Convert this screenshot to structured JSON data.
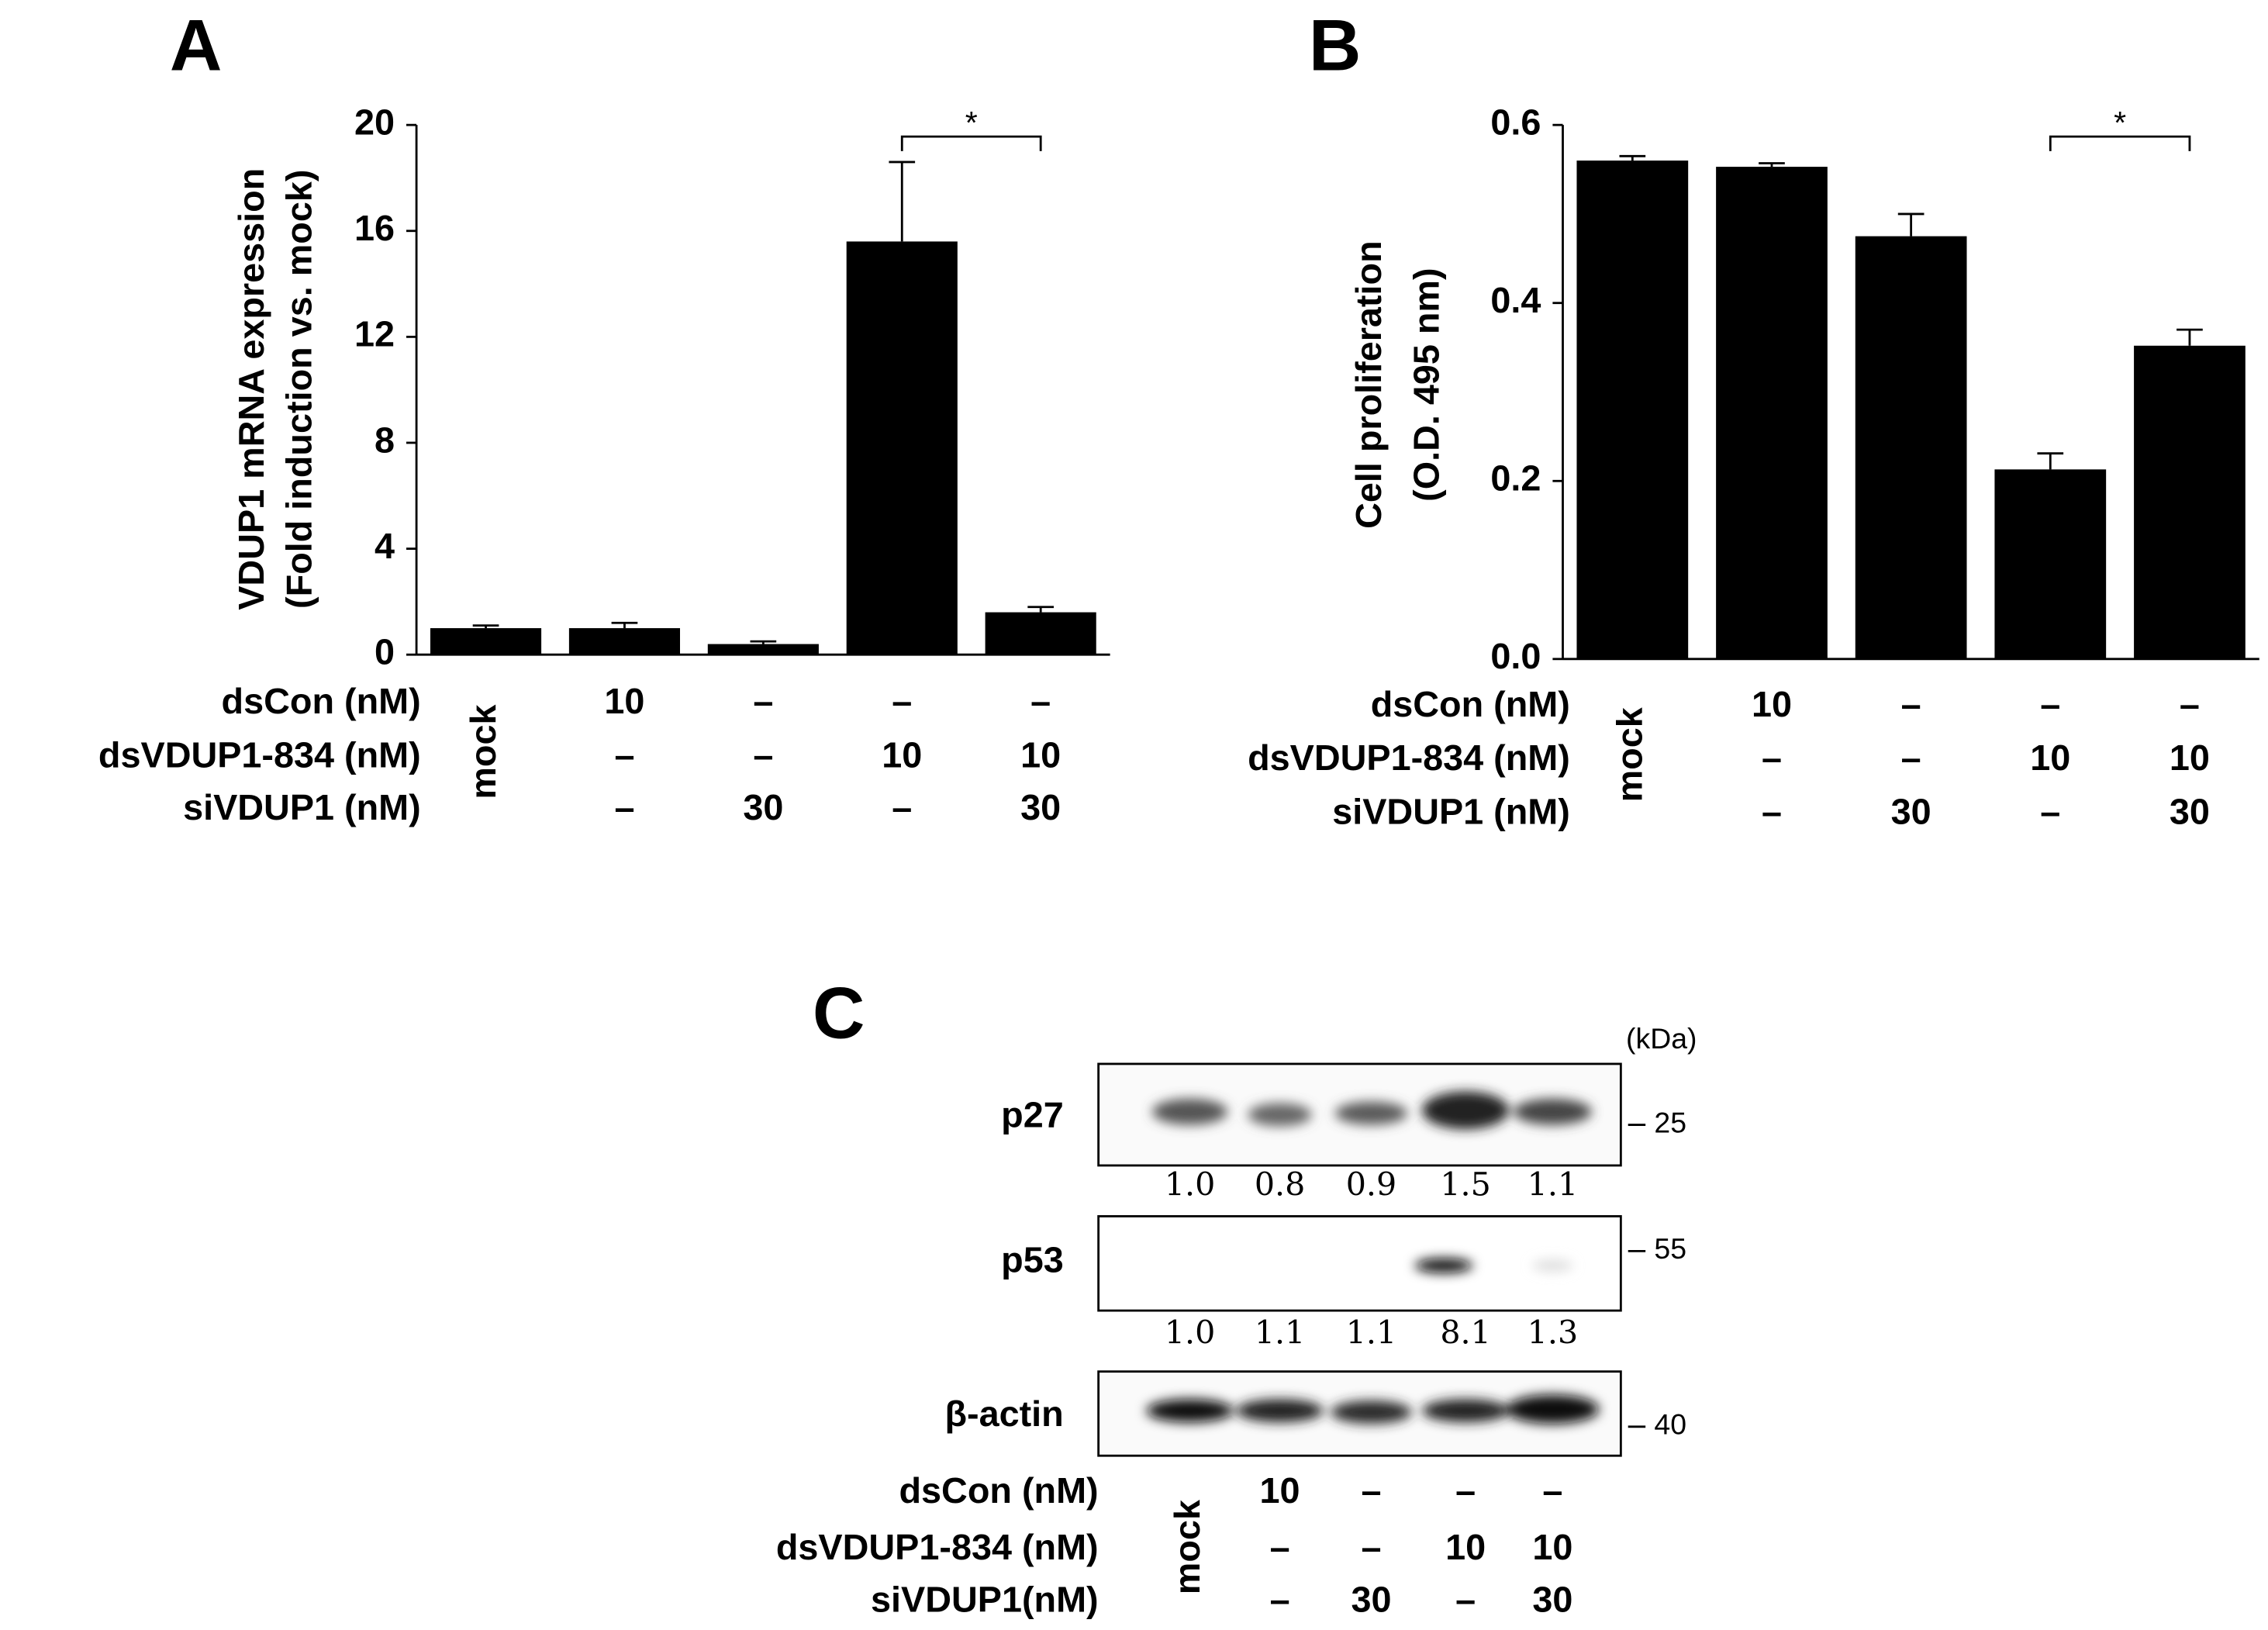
{
  "chart_data": [
    {
      "type": "bar",
      "panel": "A",
      "ylabel": [
        "VDUP1 mRNA expression",
        "(Fold induction vs. mock)"
      ],
      "categories": [
        "mock",
        null,
        null,
        null,
        null
      ],
      "values": [
        1.0,
        1.0,
        0.4,
        15.6,
        1.6
      ],
      "errors": [
        0.1,
        0.2,
        0.1,
        3.0,
        0.2
      ],
      "color": "#000000",
      "ylim": [
        0,
        20
      ],
      "yticks": [
        0,
        4,
        8,
        12,
        16,
        20
      ],
      "annotation": "*",
      "treatments": [
        {
          "name": "dsCon (nM)",
          "values": [
            "10",
            "–",
            "–",
            "–"
          ]
        },
        {
          "name": "dsVDUP1-834 (nM)",
          "values": [
            "–",
            "–",
            "10",
            "10"
          ]
        },
        {
          "name": "siVDUP1 (nM)",
          "values": [
            "–",
            "30",
            "–",
            "30"
          ]
        }
      ]
    },
    {
      "type": "bar",
      "panel": "B",
      "ylabel": [
        "Cell proliferation",
        "(O.D. 495 nm)"
      ],
      "categories": [
        "mock",
        null,
        null,
        null,
        null
      ],
      "values": [
        0.56,
        0.553,
        0.475,
        0.213,
        0.352
      ],
      "errors": [
        0.005,
        0.004,
        0.025,
        0.018,
        0.018
      ],
      "color": "#000000",
      "ylim": [
        0,
        0.6
      ],
      "yticks": [
        {
          "value": 0,
          "label": "0.0"
        },
        0.2,
        0.4,
        0.6
      ],
      "annotation": "*",
      "treatments": [
        {
          "name": "dsCon (nM)",
          "values": [
            "10",
            "–",
            "–",
            "–"
          ]
        },
        {
          "name": "dsVDUP1-834 (nM)",
          "values": [
            "–",
            "–",
            "10",
            "10"
          ]
        },
        {
          "name": "siVDUP1 (nM)",
          "values": [
            "–",
            "30",
            "–",
            "30"
          ]
        }
      ]
    }
  ],
  "panel_c": {
    "panel": "C",
    "unit": "(kDa)",
    "blots": [
      {
        "name": "p27",
        "marker": "25",
        "quant": [
          "1.0",
          "0.8",
          "0.9",
          "1.5",
          "1.1"
        ]
      },
      {
        "name": "p53",
        "marker": "55",
        "quant": [
          "1.0",
          "1.1",
          "1.1",
          "8.1",
          "1.3"
        ]
      },
      {
        "name": "β-actin",
        "marker": "40"
      }
    ],
    "mock": "mock",
    "treatments": [
      {
        "name": "dsCon (nM)",
        "values": [
          "10",
          "–",
          "–",
          "–"
        ]
      },
      {
        "name": "dsVDUP1-834 (nM)",
        "values": [
          "–",
          "–",
          "10",
          "10"
        ]
      },
      {
        "name": "siVDUP1(nM)",
        "values": [
          "–",
          "30",
          "–",
          "30"
        ]
      }
    ]
  }
}
